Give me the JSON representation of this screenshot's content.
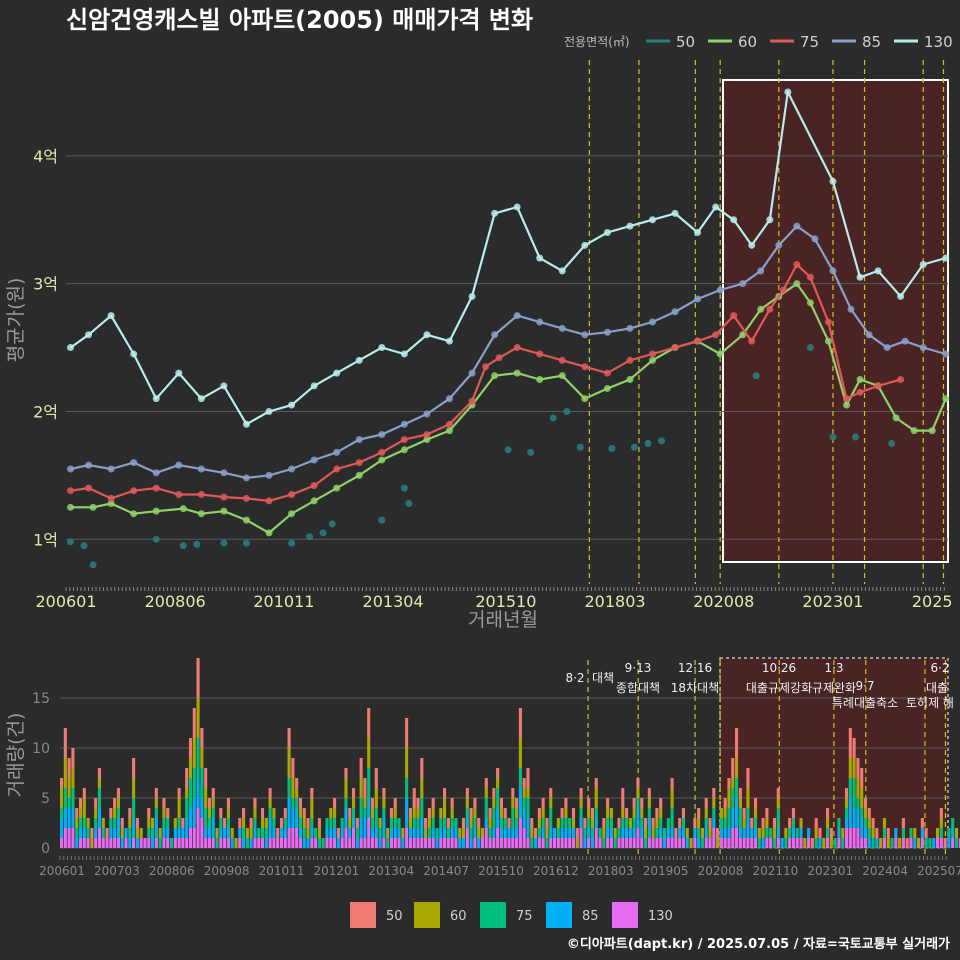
{
  "title": "신암건영캐스빌 아파트(2005) 매매가격 변화",
  "credit": "©디아파트(dapt.kr) / 2025.07.05 / 자료=국토교통부 실거래가",
  "colors": {
    "background": "#2b2b2b",
    "grid": "#5a5a5a",
    "policy_line": "#d4c21a",
    "highlight_fill": "#4a2424",
    "s50": "#2a8080",
    "s60": "#8fd16a",
    "s75": "#e05858",
    "s85": "#8aa0c8",
    "s130": "#b8ecec",
    "v50": "#f07b72",
    "v60": "#a9a800",
    "v75": "#00bf7d",
    "v85": "#00b0f6",
    "v130": "#e76bf3"
  },
  "chart_data": [
    {
      "type": "line",
      "title": "신암건영캐스빌 아파트(2005) 매매가격 변화",
      "xlabel": "거래년월",
      "ylabel": "평균가(원)",
      "x_ticks": [
        "200601",
        "200806",
        "201011",
        "201304",
        "201510",
        "201803",
        "202008",
        "202301",
        "2025"
      ],
      "y_ticks": [
        "1억",
        "2억",
        "3억",
        "4억"
      ],
      "ylim": [
        0.65,
        4.75
      ],
      "xlim": [
        2006.0,
        2025.55
      ],
      "grid": true,
      "legend": {
        "title": "전용면적(㎡)",
        "entries": [
          "50",
          "60",
          "75",
          "85",
          "130"
        ],
        "position": "top-right"
      },
      "series": [
        {
          "name": "50",
          "x": [
            2006.1,
            2006.4,
            2006.6,
            2008.0,
            2008.6,
            2008.9,
            2009.5,
            2010.0,
            2011.0,
            2011.4,
            2011.7,
            2011.9,
            2013.0,
            2013.5,
            2013.6,
            2015.8,
            2016.3,
            2016.8,
            2017.1,
            2017.4,
            2018.1,
            2018.6,
            2018.9,
            2019.2,
            2021.3,
            2022.5,
            2023.0,
            2023.5,
            2024.3
          ],
          "y": [
            0.98,
            0.95,
            0.8,
            1.0,
            0.95,
            0.96,
            0.97,
            0.97,
            0.97,
            1.02,
            1.05,
            1.12,
            1.15,
            1.4,
            1.28,
            1.7,
            1.68,
            1.95,
            2.0,
            1.72,
            1.71,
            1.72,
            1.75,
            1.77,
            2.28,
            2.5,
            1.8,
            1.8,
            1.75
          ]
        },
        {
          "name": "60",
          "x": [
            2006.1,
            2006.6,
            2007.0,
            2007.5,
            2008.0,
            2008.6,
            2009.0,
            2009.5,
            2010.0,
            2010.5,
            2011.0,
            2011.5,
            2012.0,
            2012.5,
            2013.0,
            2013.5,
            2014.0,
            2014.5,
            2015.0,
            2015.5,
            2016.0,
            2016.5,
            2017.0,
            2017.5,
            2018.0,
            2018.5,
            2019.0,
            2019.5,
            2020.0,
            2020.5,
            2021.0,
            2021.4,
            2021.8,
            2022.2,
            2022.5,
            2022.9,
            2023.3,
            2023.6,
            2024.0,
            2024.4,
            2024.8,
            2025.2,
            2025.5
          ],
          "y": [
            1.25,
            1.25,
            1.28,
            1.2,
            1.22,
            1.24,
            1.2,
            1.22,
            1.15,
            1.05,
            1.2,
            1.3,
            1.4,
            1.5,
            1.62,
            1.7,
            1.78,
            1.85,
            2.05,
            2.28,
            2.3,
            2.25,
            2.28,
            2.1,
            2.18,
            2.25,
            2.4,
            2.5,
            2.55,
            2.45,
            2.6,
            2.8,
            2.9,
            3.0,
            2.85,
            2.55,
            2.05,
            2.25,
            2.2,
            1.95,
            1.85,
            1.85,
            2.1
          ]
        },
        {
          "name": "75",
          "x": [
            2006.1,
            2006.5,
            2007.0,
            2007.5,
            2008.0,
            2008.5,
            2009.0,
            2009.5,
            2010.0,
            2010.5,
            2011.0,
            2011.5,
            2012.0,
            2012.5,
            2013.0,
            2013.5,
            2014.0,
            2014.5,
            2015.0,
            2015.3,
            2015.6,
            2016.0,
            2016.5,
            2017.0,
            2017.5,
            2018.0,
            2018.5,
            2019.0,
            2019.5,
            2020.0,
            2020.4,
            2020.8,
            2021.2,
            2021.6,
            2021.9,
            2022.2,
            2022.5,
            2022.9,
            2023.3,
            2023.6,
            2024.0,
            2024.5
          ],
          "y": [
            1.38,
            1.4,
            1.32,
            1.38,
            1.4,
            1.35,
            1.35,
            1.33,
            1.32,
            1.3,
            1.35,
            1.42,
            1.55,
            1.6,
            1.68,
            1.78,
            1.82,
            1.9,
            2.08,
            2.35,
            2.42,
            2.5,
            2.45,
            2.4,
            2.35,
            2.3,
            2.4,
            2.45,
            2.5,
            2.55,
            2.6,
            2.75,
            2.55,
            2.8,
            2.95,
            3.15,
            3.05,
            2.7,
            2.1,
            2.15,
            2.2,
            2.25
          ]
        },
        {
          "name": "85",
          "x": [
            2006.1,
            2006.5,
            2007.0,
            2007.5,
            2008.0,
            2008.5,
            2009.0,
            2009.5,
            2010.0,
            2010.5,
            2011.0,
            2011.5,
            2012.0,
            2012.5,
            2013.0,
            2013.5,
            2014.0,
            2014.5,
            2015.0,
            2015.5,
            2016.0,
            2016.5,
            2017.0,
            2017.5,
            2018.0,
            2018.5,
            2019.0,
            2019.5,
            2020.0,
            2020.5,
            2021.0,
            2021.4,
            2021.8,
            2022.2,
            2022.6,
            2023.0,
            2023.4,
            2023.8,
            2024.2,
            2024.6,
            2025.0,
            2025.5
          ],
          "y": [
            1.55,
            1.58,
            1.55,
            1.6,
            1.52,
            1.58,
            1.55,
            1.52,
            1.48,
            1.5,
            1.55,
            1.62,
            1.68,
            1.78,
            1.82,
            1.9,
            1.98,
            2.1,
            2.3,
            2.6,
            2.75,
            2.7,
            2.65,
            2.6,
            2.62,
            2.65,
            2.7,
            2.78,
            2.88,
            2.95,
            3.0,
            3.1,
            3.3,
            3.45,
            3.35,
            3.1,
            2.8,
            2.6,
            2.5,
            2.55,
            2.5,
            2.45
          ]
        },
        {
          "name": "130",
          "x": [
            2006.1,
            2006.5,
            2007.0,
            2007.5,
            2008.0,
            2008.5,
            2009.0,
            2009.5,
            2010.0,
            2010.5,
            2011.0,
            2011.5,
            2012.0,
            2012.5,
            2013.0,
            2013.5,
            2014.0,
            2014.5,
            2015.0,
            2015.5,
            2016.0,
            2016.5,
            2017.0,
            2017.5,
            2018.0,
            2018.5,
            2019.0,
            2019.5,
            2020.0,
            2020.4,
            2020.8,
            2021.2,
            2021.6,
            2022.0,
            2023.0,
            2023.6,
            2024.0,
            2024.5,
            2025.0,
            2025.5
          ],
          "y": [
            2.5,
            2.6,
            2.75,
            2.45,
            2.1,
            2.3,
            2.1,
            2.2,
            1.9,
            2.0,
            2.05,
            2.2,
            2.3,
            2.4,
            2.5,
            2.45,
            2.6,
            2.55,
            2.9,
            3.55,
            3.6,
            3.2,
            3.1,
            3.3,
            3.4,
            3.45,
            3.5,
            3.55,
            3.4,
            3.6,
            3.5,
            3.3,
            3.5,
            4.5,
            3.8,
            3.05,
            3.1,
            2.9,
            3.15,
            3.2
          ]
        }
      ]
    },
    {
      "type": "bar",
      "ylabel": "거래량(건)",
      "x_ticks": [
        "200601",
        "200703",
        "200806",
        "200908",
        "201011",
        "201201",
        "201304",
        "201407",
        "201510",
        "201612",
        "201803",
        "201905",
        "202008",
        "202110",
        "202301",
        "202404",
        "202507"
      ],
      "y_ticks": [
        "0",
        "5",
        "10",
        "15"
      ],
      "ylim": [
        0,
        19
      ],
      "legend": {
        "entries": [
          "50",
          "60",
          "75",
          "85",
          "130"
        ],
        "position": "bottom"
      },
      "annotations": [
        {
          "date": "8·2",
          "text": "대책"
        },
        {
          "date": "9·13",
          "text": "종합대책"
        },
        {
          "date": "12·16",
          "text": "18차대책"
        },
        {
          "date": "10·26",
          "text": "대출규제강화"
        },
        {
          "date": "1·3",
          "text": "규제완화"
        },
        {
          "date": "9·7",
          "text": "특례대출축소"
        },
        {
          "date": "",
          "text": "토허제 해"
        },
        {
          "date": "6·2",
          "text": "대출"
        }
      ],
      "policy_years": [
        2017.6,
        2018.7,
        2019.95,
        2020.5,
        2021.8,
        2023.0,
        2023.7,
        2025.0,
        2025.45
      ],
      "highlight_range": [
        2020.55,
        2025.5
      ],
      "bar_start": 2006.0,
      "bar_step": 0.0833,
      "bar_totals": [
        7,
        12,
        9,
        10,
        4,
        5,
        6,
        3,
        2,
        5,
        8,
        3,
        2,
        4,
        5,
        6,
        3,
        2,
        4,
        9,
        3,
        2,
        1,
        4,
        3,
        6,
        2,
        5,
        4,
        1,
        3,
        6,
        3,
        8,
        11,
        14,
        19,
        12,
        8,
        5,
        6,
        2,
        4,
        3,
        5,
        2,
        1,
        3,
        4,
        2,
        3,
        5,
        2,
        4,
        3,
        6,
        4,
        2,
        3,
        4,
        12,
        9,
        7,
        5,
        4,
        3,
        6,
        2,
        3,
        1,
        3,
        4,
        5,
        2,
        3,
        8,
        4,
        6,
        3,
        9,
        7,
        14,
        5,
        8,
        3,
        6,
        2,
        4,
        5,
        3,
        2,
        13,
        4,
        6,
        5,
        9,
        3,
        4,
        5,
        2,
        4,
        6,
        3,
        5,
        3,
        2,
        3,
        6,
        4,
        5,
        3,
        2,
        7,
        4,
        6,
        8,
        5,
        4,
        3,
        6,
        5,
        14,
        7,
        8,
        3,
        2,
        4,
        5,
        3,
        6,
        2,
        3,
        4,
        5,
        3,
        4,
        2,
        6,
        3,
        5,
        4,
        7,
        2,
        3,
        5,
        4,
        2,
        3,
        6,
        4,
        3,
        5,
        7,
        5,
        3,
        6,
        3,
        4,
        5,
        2,
        3,
        7,
        2,
        3,
        4,
        2,
        1,
        3,
        4,
        2,
        5,
        3,
        6,
        2,
        4,
        5,
        7,
        9,
        12,
        6,
        4,
        8,
        3,
        5,
        2,
        3,
        4,
        2,
        3,
        6,
        1,
        2,
        3,
        4,
        2,
        3,
        1,
        2,
        1,
        3,
        2,
        1,
        4,
        2,
        1,
        3,
        2,
        6,
        12,
        11,
        9,
        8,
        5,
        4,
        3,
        2,
        1,
        3,
        2,
        1,
        2,
        1,
        3,
        1,
        2,
        2,
        1,
        3,
        2,
        1,
        1,
        2,
        4,
        1,
        2,
        3,
        2,
        1,
        1,
        2,
        3,
        2,
        4,
        1,
        3,
        2,
        2,
        4,
        1,
        3,
        2,
        3,
        2,
        1
      ]
    }
  ]
}
